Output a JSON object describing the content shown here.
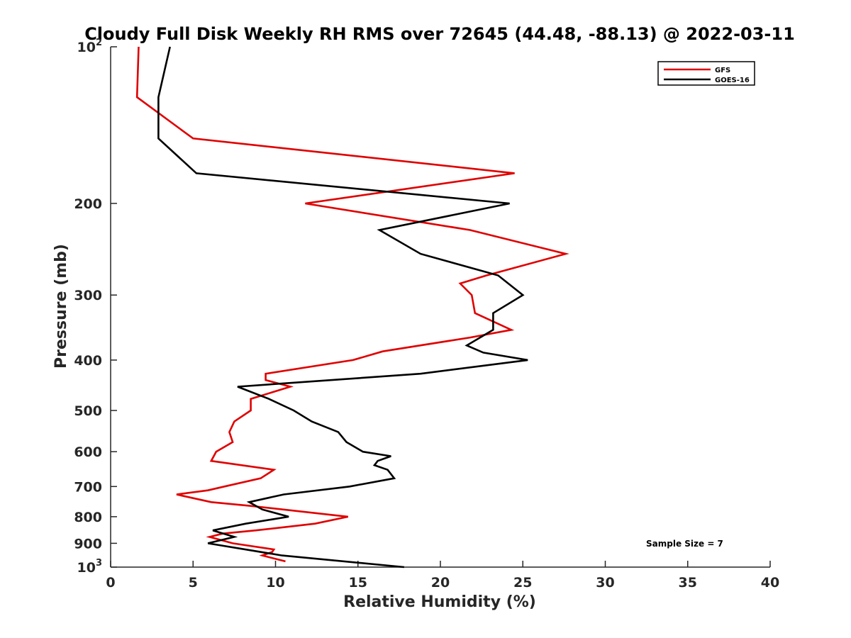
{
  "chart_data": {
    "type": "line",
    "title": "Cloudy Full Disk Weekly RH RMS over 72645 (44.48, -88.13) @ 2022-03-11",
    "xlabel": "Relative Humidity (%)",
    "ylabel": "Pressure (mb)",
    "xlim": [
      0,
      40
    ],
    "ylim": [
      100,
      1000
    ],
    "y_scale": "log",
    "y_reversed": true,
    "x_ticks": [
      "0",
      "5",
      "10",
      "15",
      "20",
      "25",
      "30",
      "35",
      "40"
    ],
    "y_ticks": [
      {
        "value": 100,
        "base": "10",
        "exp": "2"
      },
      {
        "value": 200,
        "label": "200"
      },
      {
        "value": 300,
        "label": "300"
      },
      {
        "value": 400,
        "label": "400"
      },
      {
        "value": 500,
        "label": "500"
      },
      {
        "value": 600,
        "label": "600"
      },
      {
        "value": 700,
        "label": "700"
      },
      {
        "value": 800,
        "label": "800"
      },
      {
        "value": 900,
        "label": "900"
      },
      {
        "value": 1000,
        "base": "10",
        "exp": "3"
      }
    ],
    "grid": false,
    "legend_position": "top-right",
    "annotation": "Sample Size = 7",
    "series": [
      {
        "name": "GFS",
        "color": "#e00000",
        "points": [
          [
            1.7,
            100
          ],
          [
            1.6,
            125
          ],
          [
            5.0,
            150
          ],
          [
            24.5,
            175
          ],
          [
            11.8,
            200
          ],
          [
            21.8,
            225
          ],
          [
            27.6,
            250
          ],
          [
            22.8,
            275
          ],
          [
            21.2,
            285
          ],
          [
            21.9,
            300
          ],
          [
            22.1,
            325
          ],
          [
            24.3,
            350
          ],
          [
            21.8,
            362
          ],
          [
            16.5,
            385
          ],
          [
            14.7,
            400
          ],
          [
            9.4,
            425
          ],
          [
            9.4,
            437
          ],
          [
            10.9,
            450
          ],
          [
            8.5,
            475
          ],
          [
            8.5,
            500
          ],
          [
            7.5,
            525
          ],
          [
            7.2,
            550
          ],
          [
            7.4,
            575
          ],
          [
            6.4,
            600
          ],
          [
            6.1,
            625
          ],
          [
            9.9,
            650
          ],
          [
            9.1,
            675
          ],
          [
            6.9,
            700
          ],
          [
            5.9,
            712
          ],
          [
            4.0,
            725
          ],
          [
            6.1,
            750
          ],
          [
            8.4,
            762
          ],
          [
            14.4,
            800
          ],
          [
            12.4,
            825
          ],
          [
            8.8,
            850
          ],
          [
            6.8,
            862
          ],
          [
            6.0,
            875
          ],
          [
            7.4,
            900
          ],
          [
            9.9,
            925
          ],
          [
            9.8,
            935
          ],
          [
            9.2,
            950
          ],
          [
            10.6,
            975
          ]
        ]
      },
      {
        "name": "GOES-16",
        "color": "#000000",
        "points": [
          [
            3.6,
            100
          ],
          [
            2.9,
            125
          ],
          [
            2.9,
            150
          ],
          [
            5.2,
            175
          ],
          [
            24.2,
            200
          ],
          [
            16.3,
            225
          ],
          [
            18.8,
            250
          ],
          [
            23.5,
            275
          ],
          [
            25.0,
            300
          ],
          [
            23.2,
            325
          ],
          [
            23.2,
            350
          ],
          [
            21.6,
            375
          ],
          [
            22.6,
            387
          ],
          [
            25.3,
            400
          ],
          [
            18.8,
            425
          ],
          [
            7.7,
            450
          ],
          [
            9.6,
            475
          ],
          [
            11.1,
            500
          ],
          [
            12.2,
            525
          ],
          [
            13.8,
            550
          ],
          [
            14.3,
            575
          ],
          [
            15.3,
            600
          ],
          [
            17.0,
            612
          ],
          [
            16.2,
            625
          ],
          [
            16.0,
            637
          ],
          [
            16.8,
            650
          ],
          [
            17.2,
            675
          ],
          [
            14.5,
            700
          ],
          [
            10.5,
            725
          ],
          [
            8.4,
            750
          ],
          [
            9.2,
            775
          ],
          [
            10.8,
            800
          ],
          [
            8.2,
            825
          ],
          [
            6.2,
            850
          ],
          [
            7.5,
            875
          ],
          [
            5.9,
            900
          ],
          [
            10.4,
            950
          ],
          [
            17.8,
            1000
          ]
        ]
      }
    ]
  }
}
